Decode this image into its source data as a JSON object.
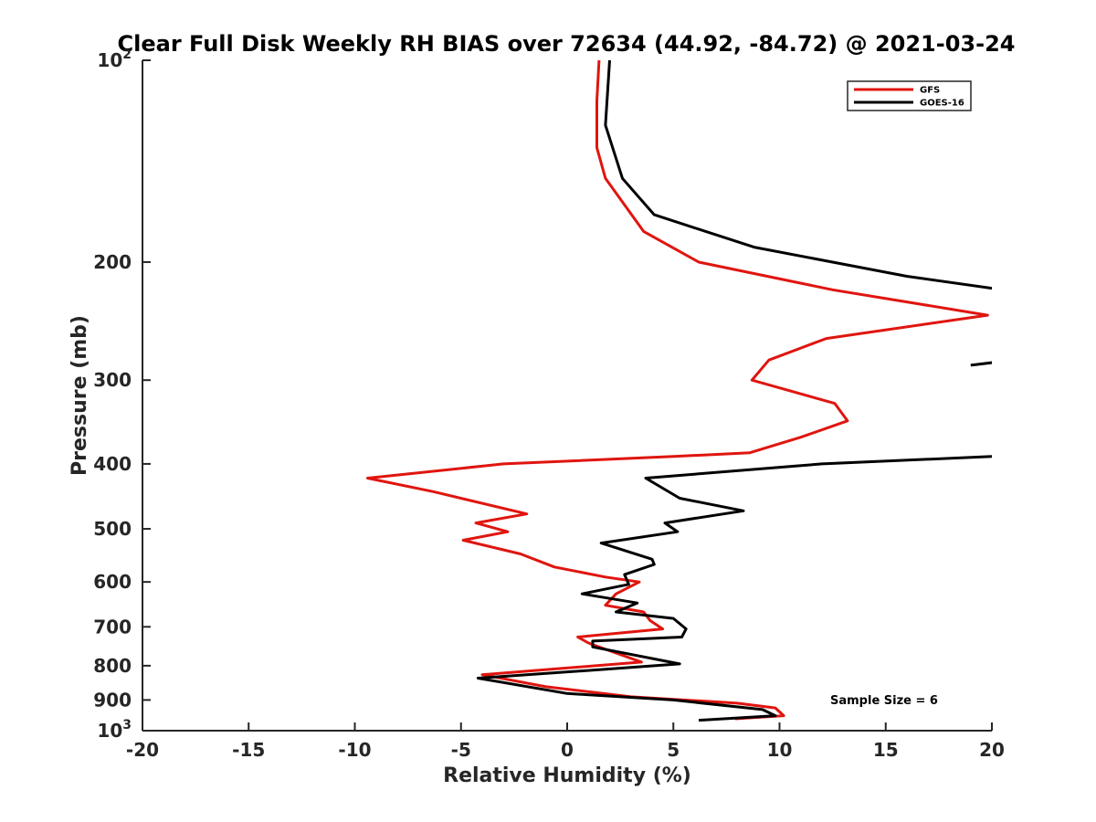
{
  "chart_data": {
    "type": "line",
    "title": "Clear Full Disk Weekly RH BIAS over 72634 (44.92, -84.72) @ 2021-03-24",
    "xlabel": "Relative Humidity (%)",
    "ylabel": "Pressure (mb)",
    "xlim": [
      -20,
      20
    ],
    "ylim": [
      100,
      1000
    ],
    "yscale": "log",
    "y_reversed": true,
    "xticks": [
      -20,
      -15,
      -10,
      -5,
      0,
      5,
      10,
      15,
      20
    ],
    "xtick_labels": [
      "-20",
      "-15",
      "-10",
      "-5",
      "0",
      "5",
      "10",
      "15",
      "20"
    ],
    "yticks": [
      200,
      300,
      400,
      500,
      600,
      700,
      800,
      900
    ],
    "ytick_labels": [
      "200",
      "300",
      "400",
      "500",
      "600",
      "700",
      "800",
      "900"
    ],
    "y_power_labels": [
      {
        "value": 100,
        "base": "10",
        "exp": "2"
      },
      {
        "value": 1000,
        "base": "10",
        "exp": "3"
      }
    ],
    "legend_position": "top-right",
    "annotation": "Sample Size = 6",
    "series": [
      {
        "name": "GFS",
        "color": "#e0150f",
        "points": [
          [
            1.5,
            100
          ],
          [
            1.4,
            115
          ],
          [
            1.4,
            135
          ],
          [
            1.8,
            150
          ],
          [
            3.6,
            180
          ],
          [
            6.2,
            200
          ],
          [
            12.5,
            220
          ],
          [
            19.8,
            240
          ],
          [
            12.2,
            260
          ],
          [
            9.5,
            280
          ],
          [
            8.7,
            300
          ],
          [
            12.6,
            325
          ],
          [
            13.2,
            345
          ],
          [
            11.0,
            365
          ],
          [
            8.6,
            385
          ],
          [
            5.0,
            390
          ],
          [
            -3.0,
            400
          ],
          [
            -9.4,
            420
          ],
          [
            -6.3,
            440
          ],
          [
            -1.9,
            475
          ],
          [
            -4.3,
            490
          ],
          [
            -2.8,
            505
          ],
          [
            -4.9,
            520
          ],
          [
            -2.2,
            545
          ],
          [
            -0.6,
            570
          ],
          [
            1.8,
            590
          ],
          [
            3.4,
            600
          ],
          [
            2.3,
            625
          ],
          [
            1.8,
            650
          ],
          [
            3.6,
            665
          ],
          [
            3.9,
            685
          ],
          [
            4.5,
            705
          ],
          [
            0.5,
            725
          ],
          [
            1.0,
            740
          ],
          [
            2.0,
            760
          ],
          [
            3.5,
            790
          ],
          [
            -4.0,
            825
          ],
          [
            -1.0,
            860
          ],
          [
            3.0,
            890
          ],
          [
            8.0,
            910
          ],
          [
            9.8,
            925
          ],
          [
            10.2,
            950
          ],
          [
            7.9,
            960
          ]
        ]
      },
      {
        "name": "GOES-16",
        "color": "#000000",
        "points": [
          [
            2.0,
            100
          ],
          [
            1.8,
            125
          ],
          [
            2.6,
            150
          ],
          [
            4.1,
            170
          ],
          [
            8.8,
            190
          ],
          [
            16.0,
            210
          ],
          [
            20.5,
            220
          ],
          [
            null,
            230
          ],
          [
            19.0,
            285
          ],
          [
            20.2,
            282
          ],
          [
            null,
            300
          ],
          [
            20.0,
            390
          ],
          [
            12.0,
            400
          ],
          [
            3.7,
            420
          ],
          [
            5.3,
            450
          ],
          [
            8.3,
            470
          ],
          [
            4.6,
            490
          ],
          [
            5.2,
            505
          ],
          [
            1.6,
            525
          ],
          [
            4.0,
            555
          ],
          [
            4.1,
            565
          ],
          [
            2.7,
            585
          ],
          [
            2.9,
            605
          ],
          [
            0.7,
            625
          ],
          [
            3.3,
            645
          ],
          [
            2.3,
            665
          ],
          [
            5.0,
            680
          ],
          [
            5.6,
            705
          ],
          [
            5.4,
            725
          ],
          [
            1.2,
            735
          ],
          [
            1.2,
            750
          ],
          [
            5.3,
            795
          ],
          [
            1.8,
            810
          ],
          [
            -4.2,
            835
          ],
          [
            0.0,
            880
          ],
          [
            5.0,
            900
          ],
          [
            9.2,
            930
          ],
          [
            9.8,
            950
          ],
          [
            6.2,
            965
          ]
        ]
      }
    ]
  }
}
